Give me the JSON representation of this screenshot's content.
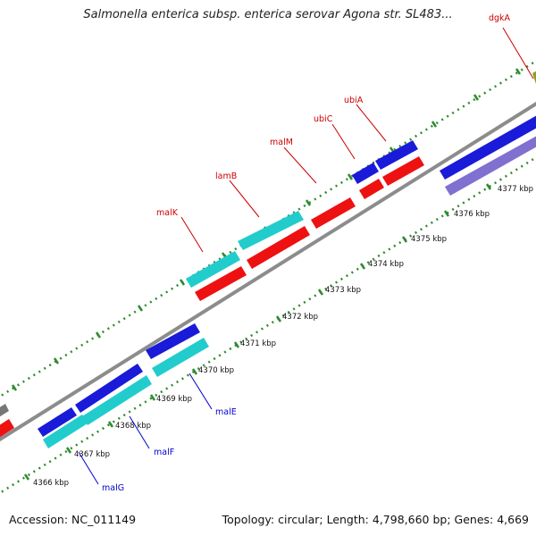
{
  "header": {
    "title": "Salmonella enterica subsp. enterica serovar Agona str. SL483..."
  },
  "footer": {
    "accession": "Accession: NC_011149",
    "summary": "Topology: circular; Length: 4,798,660 bp; Genes: 4,669"
  },
  "colors": {
    "backbone": "#8c8c8c",
    "ticks": "#2e8b2e",
    "top_label": "#cc0000",
    "bottom_label": "#0000cc",
    "red_feature": "#ee1111",
    "cyan_feature": "#22cccc",
    "blue_feature": "#1a1ad9",
    "purple_feature": "#8070d0",
    "olive_feature": "#8aa020",
    "gray_feature": "#777777"
  },
  "kbp_labels": [
    "4366 kbp",
    "4367 kbp",
    "4368 kbp",
    "4369 kbp",
    "4370 kbp",
    "4371 kbp",
    "4372 kbp",
    "4373 kbp",
    "4374 kbp",
    "4375 kbp",
    "4376 kbp",
    "4377 kbp"
  ],
  "gene_labels_top": [
    "malK",
    "lamB",
    "malM",
    "ubiC",
    "ubiA",
    "dgkA"
  ],
  "gene_labels_bottom": [
    "malE",
    "malF",
    "malG"
  ]
}
